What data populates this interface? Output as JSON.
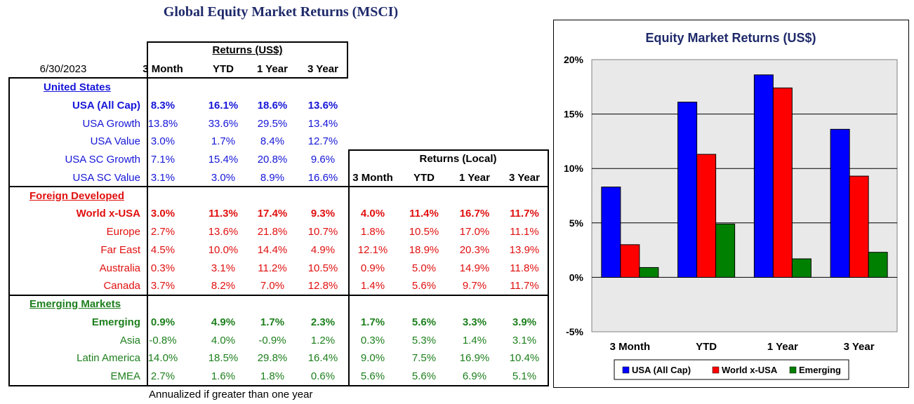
{
  "page_title": "Global Equity Market Returns (MSCI)",
  "date": "6/30/2023",
  "usd_header": "Returns (US$)",
  "local_header": "Returns (Local)",
  "columns": [
    "3 Month",
    "YTD",
    "1 Year",
    "3 Year"
  ],
  "groups": [
    {
      "name": "United States",
      "color": "#1616d8",
      "rows": [
        {
          "label": "USA (All Cap)",
          "bold": true,
          "usd": [
            "8.3%",
            "16.1%",
            "18.6%",
            "13.6%"
          ],
          "local": null
        },
        {
          "label": "USA Growth",
          "bold": false,
          "usd": [
            "13.8%",
            "33.6%",
            "29.5%",
            "13.4%"
          ],
          "local": null
        },
        {
          "label": "USA Value",
          "bold": false,
          "usd": [
            "3.0%",
            "1.7%",
            "8.4%",
            "12.7%"
          ],
          "local": null
        },
        {
          "label": "USA SC Growth",
          "bold": false,
          "usd": [
            "7.1%",
            "15.4%",
            "20.8%",
            "9.6%"
          ],
          "local": null
        },
        {
          "label": "USA SC Value",
          "bold": false,
          "usd": [
            "3.1%",
            "3.0%",
            "8.9%",
            "16.6%"
          ],
          "local": null
        }
      ]
    },
    {
      "name": "Foreign Developed",
      "color": "#e0100f",
      "rows": [
        {
          "label": "World x-USA",
          "bold": true,
          "usd": [
            "3.0%",
            "11.3%",
            "17.4%",
            "9.3%"
          ],
          "local": [
            "4.0%",
            "11.4%",
            "16.7%",
            "11.7%"
          ]
        },
        {
          "label": "Europe",
          "bold": false,
          "usd": [
            "2.7%",
            "13.6%",
            "21.8%",
            "10.7%"
          ],
          "local": [
            "1.8%",
            "10.5%",
            "17.0%",
            "11.1%"
          ]
        },
        {
          "label": "Far East",
          "bold": false,
          "usd": [
            "4.5%",
            "10.0%",
            "14.4%",
            "4.9%"
          ],
          "local": [
            "12.1%",
            "18.9%",
            "20.3%",
            "13.9%"
          ]
        },
        {
          "label": "Australia",
          "bold": false,
          "usd": [
            "0.3%",
            "3.1%",
            "11.2%",
            "10.5%"
          ],
          "local": [
            "0.9%",
            "5.0%",
            "14.9%",
            "11.8%"
          ]
        },
        {
          "label": "Canada",
          "bold": false,
          "usd": [
            "3.7%",
            "8.2%",
            "7.0%",
            "12.8%"
          ],
          "local": [
            "1.4%",
            "5.6%",
            "9.7%",
            "11.7%"
          ]
        }
      ]
    },
    {
      "name": "Emerging Markets",
      "color": "#1d7f1d",
      "rows": [
        {
          "label": "Emerging",
          "bold": true,
          "usd": [
            "0.9%",
            "4.9%",
            "1.7%",
            "2.3%"
          ],
          "local": [
            "1.7%",
            "5.6%",
            "3.3%",
            "3.9%"
          ]
        },
        {
          "label": "Asia",
          "bold": false,
          "usd": [
            "-0.8%",
            "4.0%",
            "-0.9%",
            "1.2%"
          ],
          "local": [
            "0.3%",
            "5.3%",
            "1.4%",
            "3.1%"
          ]
        },
        {
          "label": "Latin America",
          "bold": false,
          "usd": [
            "14.0%",
            "18.5%",
            "29.8%",
            "16.4%"
          ],
          "local": [
            "9.0%",
            "7.5%",
            "16.9%",
            "10.4%"
          ]
        },
        {
          "label": "EMEA",
          "bold": false,
          "usd": [
            "2.7%",
            "1.6%",
            "1.8%",
            "0.6%"
          ],
          "local": [
            "5.6%",
            "5.6%",
            "6.9%",
            "5.1%"
          ]
        }
      ]
    }
  ],
  "footnote": "Annualized if greater than one year",
  "chart_data": {
    "type": "bar",
    "title": "Equity Market Returns (US$)",
    "categories": [
      "3 Month",
      "YTD",
      "1 Year",
      "3 Year"
    ],
    "series": [
      {
        "name": "USA (All Cap)",
        "color": "#0000ff",
        "values": [
          8.3,
          16.1,
          18.6,
          13.6
        ]
      },
      {
        "name": "World x-USA",
        "color": "#ff0000",
        "values": [
          3.0,
          11.3,
          17.4,
          9.3
        ]
      },
      {
        "name": "Emerging",
        "color": "#008000",
        "values": [
          0.9,
          4.9,
          1.7,
          2.3
        ]
      }
    ],
    "ylim": [
      -5,
      20
    ],
    "yticks": [
      20,
      15,
      10,
      5,
      0,
      -5
    ],
    "ytick_labels": [
      "20%",
      "15%",
      "10%",
      "5%",
      "0%",
      "-5%"
    ],
    "plot_background": "#e9e9e9",
    "grid": true,
    "legend_position": "bottom"
  }
}
